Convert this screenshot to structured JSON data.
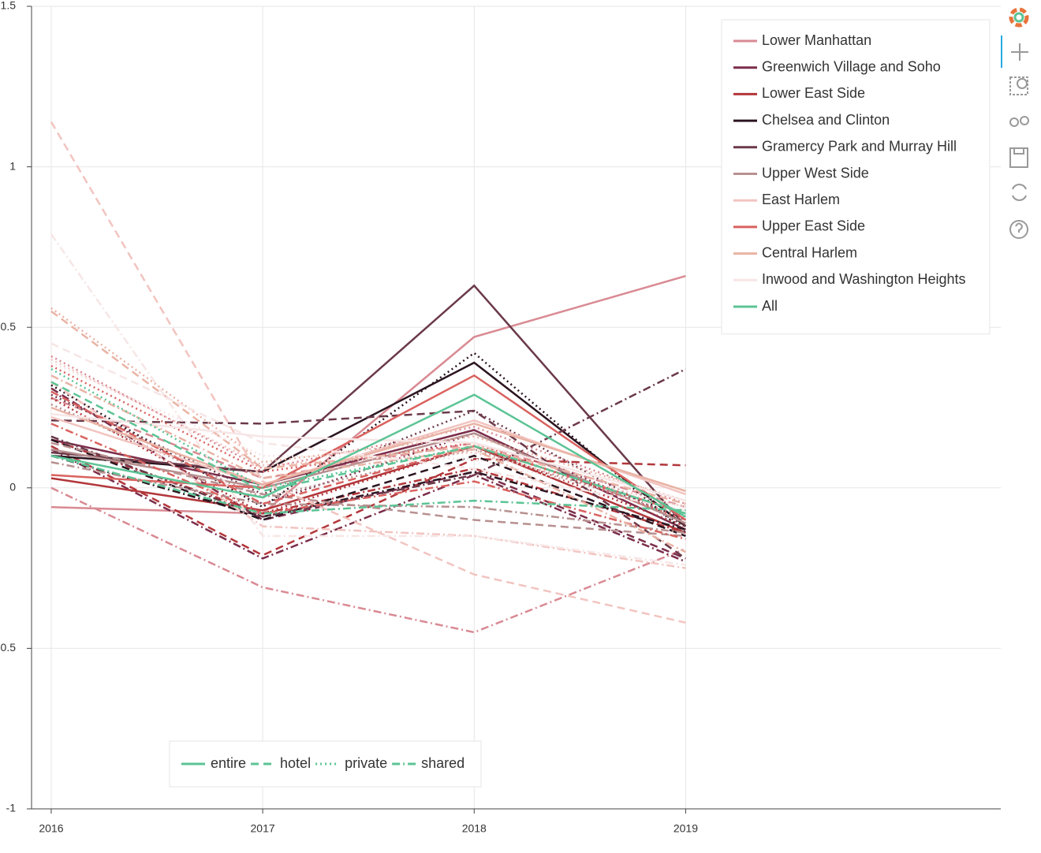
{
  "chart_data": {
    "type": "line",
    "x": [
      2016,
      2017,
      2018,
      2019
    ],
    "xlim": [
      2015.907,
      2020.49
    ],
    "xticks": [
      2016,
      2017,
      2018,
      2019
    ],
    "ylim": [
      -1,
      1.5
    ],
    "yticks": [
      -1,
      -0.5,
      0,
      0.5,
      1,
      1.5
    ],
    "grid": true,
    "legend": "top-right",
    "room_legend": "bottom-left",
    "room_types": [
      {
        "name": "entire",
        "dash": "none"
      },
      {
        "name": "hotel",
        "dash": "10,6"
      },
      {
        "name": "private",
        "dash": "2,4"
      },
      {
        "name": "shared",
        "dash": "10,4,2,4"
      }
    ],
    "series": [
      {
        "name": "Lower Manhattan",
        "color": "#d98a93",
        "values": [
          [
            -0.06,
            -0.08,
            0.47,
            0.66
          ],
          [
            0.28,
            0.03,
            0.14,
            -0.06
          ],
          [
            0.41,
            0.06,
            0.19,
            -0.05
          ],
          [
            0.0,
            -0.31,
            -0.45,
            -0.19
          ]
        ]
      },
      {
        "name": "Greenwich Village and Soho",
        "color": "#7b2d4a",
        "values": [
          [
            0.15,
            0.01,
            0.18,
            -0.13
          ],
          [
            0.31,
            -0.1,
            0.05,
            -0.22
          ],
          [
            0.3,
            -0.05,
            0.17,
            -0.1
          ],
          [
            0.12,
            -0.22,
            0.04,
            -0.23
          ]
        ]
      },
      {
        "name": "Lower East Side",
        "color": "#b2363a",
        "values": [
          [
            0.03,
            -0.07,
            0.13,
            -0.14
          ],
          [
            0.13,
            -0.21,
            0.09,
            0.07
          ],
          [
            0.28,
            -0.08,
            0.13,
            -0.12
          ],
          [
            0.15,
            -0.08,
            0.06,
            -0.14
          ]
        ]
      },
      {
        "name": "Chelsea and Clinton",
        "color": "#2b1520",
        "values": [
          [
            0.1,
            0.05,
            0.39,
            -0.12
          ],
          [
            0.15,
            -0.1,
            0.1,
            -0.15
          ],
          [
            0.32,
            -0.06,
            0.42,
            -0.14
          ],
          [
            0.1,
            -0.09,
            0.05,
            -0.13
          ]
        ]
      },
      {
        "name": "Gramercy Park and Murray Hill",
        "color": "#6b3a4a",
        "values": [
          [
            0.11,
            0.05,
            0.63,
            -0.12
          ],
          [
            0.21,
            0.2,
            0.24,
            -0.22
          ],
          [
            0.29,
            -0.02,
            0.24,
            -0.12
          ],
          [
            0.16,
            -0.09,
            0.04,
            0.37
          ]
        ]
      },
      {
        "name": "Upper West Side",
        "color": "#b89090",
        "values": [
          [
            0.12,
            0.0,
            0.17,
            -0.11
          ],
          [
            0.14,
            -0.02,
            -0.1,
            -0.15
          ],
          [
            0.26,
            -0.03,
            0.12,
            -0.09
          ],
          [
            0.08,
            -0.05,
            -0.06,
            -0.14
          ]
        ]
      },
      {
        "name": "East Harlem",
        "color": "#f2c4c0",
        "values": [
          [
            0.22,
            0.01,
            0.21,
            -0.02
          ],
          [
            1.14,
            0.02,
            -0.27,
            -0.42
          ],
          [
            0.4,
            0.07,
            0.11,
            -0.06
          ],
          [
            0.33,
            -0.12,
            -0.15,
            -0.25
          ]
        ]
      },
      {
        "name": "Upper East Side",
        "color": "#d9625f",
        "values": [
          [
            0.04,
            0.0,
            0.35,
            -0.1
          ],
          [
            0.3,
            -0.05,
            0.13,
            -0.08
          ],
          [
            0.38,
            0.05,
            0.14,
            -0.1
          ],
          [
            0.2,
            -0.08,
            0.02,
            -0.16
          ]
        ]
      },
      {
        "name": "Central Harlem",
        "color": "#e9b3a5",
        "values": [
          [
            0.25,
            0.01,
            0.2,
            -0.01
          ],
          [
            0.55,
            0.06,
            0.13,
            -0.05
          ],
          [
            0.56,
            0.08,
            0.16,
            -0.04
          ],
          [
            0.35,
            0.03,
            0.12,
            -0.2
          ]
        ]
      },
      {
        "name": "Inwood and Washington Heights",
        "color": "#f7e6e6",
        "values": [
          [
            0.23,
            0.16,
            0.14,
            -0.04
          ],
          [
            0.45,
            0.14,
            0.06,
            -0.07
          ],
          [
            0.39,
            0.1,
            0.09,
            -0.06
          ],
          [
            0.79,
            -0.15,
            -0.15,
            -0.24
          ]
        ]
      },
      {
        "name": "All",
        "color": "#5cc495",
        "values": [
          [
            0.1,
            -0.03,
            0.29,
            -0.09
          ],
          [
            0.33,
            -0.01,
            0.13,
            -0.08
          ],
          [
            0.37,
            0.0,
            0.13,
            -0.08
          ],
          [
            0.1,
            -0.08,
            -0.04,
            -0.07
          ]
        ]
      }
    ]
  }
}
